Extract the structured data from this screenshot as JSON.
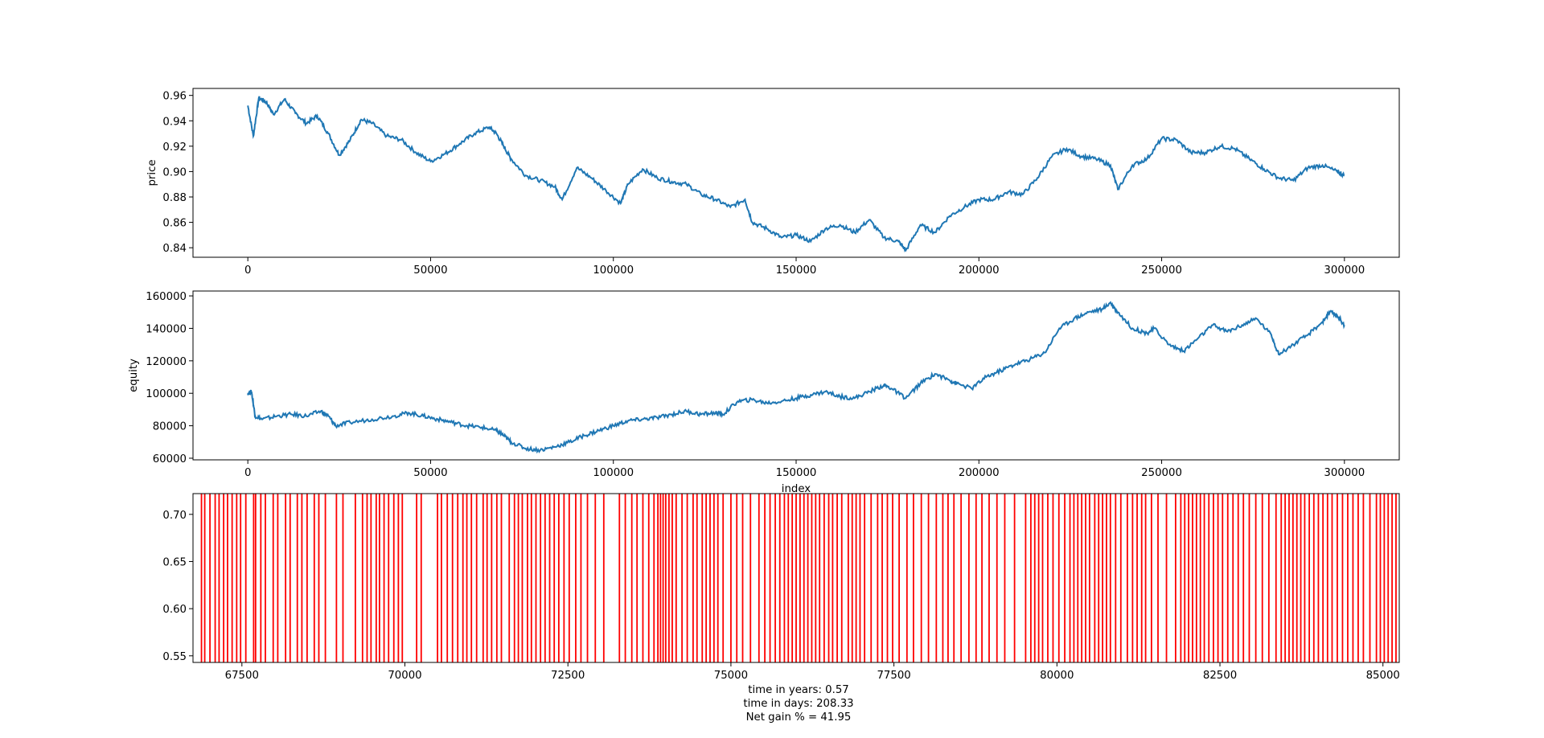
{
  "chart_data": [
    {
      "type": "line",
      "xlabel": "",
      "ylabel": "price",
      "xlim": [
        -15000,
        315000
      ],
      "ylim": [
        0.8325,
        0.9655
      ],
      "xticks": [
        0,
        50000,
        100000,
        150000,
        200000,
        250000,
        300000
      ],
      "yticks": [
        0.84,
        0.86,
        0.88,
        0.9,
        0.92,
        0.94,
        0.96
      ],
      "ytick_labels": [
        "0.84",
        "0.86",
        "0.88",
        "0.90",
        "0.92",
        "0.94",
        "0.96"
      ],
      "series_color": "#1f77b4",
      "x": [
        0,
        1500,
        3000,
        5000,
        7000,
        10000,
        13000,
        16000,
        19000,
        22000,
        25000,
        28000,
        31000,
        34000,
        38000,
        42000,
        46000,
        50000,
        54000,
        58000,
        62000,
        66000,
        68000,
        70000,
        72000,
        76000,
        80000,
        84000,
        86000,
        90000,
        94000,
        98000,
        102000,
        104000,
        108000,
        112000,
        116000,
        120000,
        124000,
        128000,
        132000,
        136000,
        138000,
        142000,
        146000,
        150000,
        154000,
        158000,
        162000,
        166000,
        170000,
        174000,
        178000,
        180000,
        184000,
        188000,
        192000,
        196000,
        200000,
        204000,
        208000,
        212000,
        216000,
        220000,
        224000,
        228000,
        232000,
        236000,
        238000,
        242000,
        246000,
        250000,
        254000,
        258000,
        262000,
        266000,
        270000,
        274000,
        278000,
        282000,
        286000,
        290000,
        294000,
        298000,
        300000
      ],
      "y": [
        0.952,
        0.928,
        0.958,
        0.955,
        0.945,
        0.957,
        0.946,
        0.938,
        0.944,
        0.93,
        0.913,
        0.925,
        0.941,
        0.938,
        0.928,
        0.925,
        0.915,
        0.908,
        0.914,
        0.922,
        0.93,
        0.935,
        0.93,
        0.92,
        0.91,
        0.897,
        0.893,
        0.888,
        0.878,
        0.903,
        0.895,
        0.885,
        0.875,
        0.89,
        0.902,
        0.895,
        0.892,
        0.89,
        0.882,
        0.878,
        0.872,
        0.878,
        0.86,
        0.855,
        0.848,
        0.85,
        0.845,
        0.855,
        0.858,
        0.852,
        0.862,
        0.848,
        0.845,
        0.838,
        0.858,
        0.852,
        0.865,
        0.872,
        0.878,
        0.878,
        0.884,
        0.882,
        0.895,
        0.912,
        0.918,
        0.912,
        0.91,
        0.905,
        0.886,
        0.905,
        0.91,
        0.926,
        0.925,
        0.915,
        0.915,
        0.92,
        0.918,
        0.91,
        0.902,
        0.895,
        0.893,
        0.903,
        0.905,
        0.9,
        0.897
      ]
    },
    {
      "type": "line",
      "xlabel": "index",
      "ylabel": "equity",
      "xlim": [
        -15000,
        315000
      ],
      "ylim": [
        59000,
        163000
      ],
      "xticks": [
        0,
        50000,
        100000,
        150000,
        200000,
        250000,
        300000
      ],
      "yticks": [
        60000,
        80000,
        100000,
        120000,
        140000,
        160000
      ],
      "series_color": "#1f77b4",
      "x": [
        0,
        1000,
        2000,
        4000,
        8000,
        12000,
        16000,
        20000,
        22000,
        24000,
        28000,
        34000,
        40000,
        44000,
        48000,
        52000,
        56000,
        60000,
        64000,
        68000,
        70000,
        72000,
        76000,
        80000,
        84000,
        88000,
        92000,
        96000,
        100000,
        104000,
        108000,
        112000,
        116000,
        120000,
        124000,
        128000,
        130000,
        134000,
        138000,
        142000,
        146000,
        150000,
        154000,
        158000,
        162000,
        166000,
        170000,
        174000,
        176000,
        180000,
        184000,
        188000,
        192000,
        194000,
        198000,
        202000,
        206000,
        210000,
        214000,
        218000,
        222000,
        226000,
        230000,
        234000,
        236000,
        238000,
        242000,
        246000,
        248000,
        252000,
        256000,
        260000,
        264000,
        268000,
        272000,
        276000,
        280000,
        282000,
        286000,
        290000,
        294000,
        296000,
        298000,
        300000
      ],
      "y": [
        100000,
        101000,
        86000,
        84000,
        86000,
        87000,
        86000,
        89000,
        86000,
        80000,
        82000,
        84000,
        86000,
        88000,
        86000,
        84000,
        82000,
        80000,
        79000,
        77000,
        74000,
        70000,
        66000,
        65000,
        67000,
        70000,
        74000,
        77000,
        80000,
        83000,
        84000,
        85000,
        87000,
        89000,
        87000,
        88000,
        87000,
        95000,
        96000,
        94000,
        95000,
        97000,
        99000,
        101000,
        98000,
        97000,
        101000,
        105000,
        103000,
        97000,
        106000,
        112000,
        108000,
        106000,
        103000,
        110000,
        114000,
        118000,
        121000,
        125000,
        140000,
        146000,
        150000,
        152000,
        156000,
        150000,
        140000,
        137000,
        140000,
        130000,
        126000,
        134000,
        142000,
        138000,
        142000,
        146000,
        136000,
        124000,
        130000,
        136000,
        144000,
        150000,
        148000,
        142000
      ]
    },
    {
      "type": "event_lines",
      "xlabel": "",
      "ylabel": "",
      "xlim": [
        66750,
        85250
      ],
      "ylim": [
        0.543,
        0.722
      ],
      "xticks": [
        67500,
        70000,
        72500,
        75000,
        77500,
        80000,
        82500,
        85000
      ],
      "yticks": [
        0.55,
        0.6,
        0.65,
        0.7
      ],
      "ytick_labels": [
        "0.55",
        "0.60",
        "0.65",
        "0.70"
      ],
      "line_ymin": 0.543,
      "line_ymax": 0.722,
      "line_color": "#ff0000",
      "event_x": [
        66880,
        66930,
        67010,
        67090,
        67150,
        67220,
        67280,
        67350,
        67420,
        67480,
        67560,
        67680,
        67710,
        67790,
        67860,
        67980,
        68050,
        68170,
        68240,
        68350,
        68420,
        68500,
        68610,
        68680,
        68780,
        68950,
        69050,
        69240,
        69350,
        69420,
        69480,
        69560,
        69610,
        69680,
        69750,
        69830,
        69900,
        69960,
        70180,
        70250,
        70500,
        70560,
        70650,
        70730,
        70810,
        70890,
        70950,
        71020,
        71100,
        71200,
        71260,
        71330,
        71410,
        71480,
        71600,
        71680,
        71740,
        71800,
        71880,
        71940,
        72010,
        72080,
        72150,
        72220,
        72290,
        72360,
        72440,
        72520,
        72620,
        72700,
        72800,
        72920,
        73050,
        73290,
        73380,
        73480,
        73560,
        73650,
        73740,
        73820,
        73880,
        73920,
        73960,
        74000,
        74050,
        74100,
        74160,
        74250,
        74330,
        74420,
        74480,
        74560,
        74620,
        74680,
        74740,
        74800,
        74880,
        75000,
        75090,
        75180,
        75300,
        75430,
        75520,
        75600,
        75680,
        75750,
        75820,
        75880,
        75940,
        76000,
        76060,
        76120,
        76180,
        76240,
        76300,
        76360,
        76430,
        76500,
        76560,
        76630,
        76700,
        76800,
        76860,
        76920,
        76980,
        77050,
        77150,
        77250,
        77320,
        77400,
        77480,
        77580,
        77700,
        77800,
        77920,
        78030,
        78150,
        78250,
        78330,
        78420,
        78530,
        78650,
        78760,
        78850,
        78960,
        79080,
        79200,
        79350,
        79520,
        79600,
        79660,
        79720,
        79780,
        79860,
        79940,
        80030,
        80120,
        80200,
        80260,
        80320,
        80380,
        80440,
        80500,
        80580,
        80640,
        80700,
        80760,
        80820,
        80900,
        80980,
        81080,
        81160,
        81230,
        81300,
        81360,
        81450,
        81550,
        81680,
        81820,
        81900,
        81960,
        82020,
        82080,
        82140,
        82200,
        82260,
        82330,
        82400,
        82470,
        82540,
        82620,
        82700,
        82780,
        82860,
        82950,
        83050,
        83150,
        83250,
        83360,
        83440,
        83500,
        83560,
        83620,
        83680,
        83740,
        83800,
        83870,
        83940,
        84010,
        84080,
        84150,
        84220,
        84300,
        84380,
        84460,
        84540,
        84620,
        84700,
        84800,
        84900,
        84960,
        85020,
        85080,
        85140,
        85200
      ]
    }
  ],
  "footer": {
    "years": "time in years: 0.57",
    "days": "time in days: 208.33",
    "net_gain": "Net gain % = 41.95"
  }
}
